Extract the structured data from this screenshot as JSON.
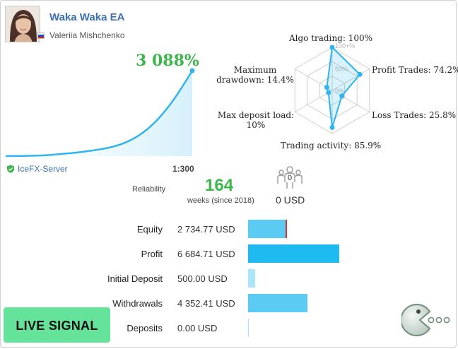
{
  "signal": {
    "title": "Waka Waka EA",
    "author": "Valeriia Mishchenko",
    "country_flag": "russia-flag-icon",
    "growth": "3 088%",
    "server": "IceFX-Server",
    "leverage": "1:300",
    "reliability_label": "Reliability",
    "weeks_value": "164",
    "weeks_label": "weeks (since 2018)",
    "subscribers_count": "0",
    "subscribers_usd": "0 USD",
    "live_label": "LIVE SIGNAL"
  },
  "growth_chart": {
    "type": "area",
    "values": [
      0,
      2,
      5,
      8,
      11,
      14,
      18,
      24,
      32,
      45,
      62,
      80,
      96,
      110,
      128,
      150,
      175,
      200,
      225,
      255,
      290,
      330,
      380,
      440,
      510,
      600,
      700,
      820,
      960,
      1120,
      1300,
      1500,
      1720,
      1960,
      2220,
      2500,
      2790,
      3088
    ]
  },
  "chart_data": {
    "type": "radar",
    "axes": [
      {
        "label": "Algo trading: 100%",
        "value": 100
      },
      {
        "label": "Profit Trades: 74.2%",
        "value": 74.2
      },
      {
        "label": "Loss Trades: 25.8%",
        "value": 25.8
      },
      {
        "label": "Trading activity: 85.9%",
        "value": 85.9
      },
      {
        "label_lines": [
          "Max deposit load:",
          "10%"
        ],
        "value": 10
      },
      {
        "label_lines": [
          "Maximum",
          "drawdown: 14.4%"
        ],
        "value": 14.4
      }
    ],
    "ring_labels": [
      "100+%",
      "50%",
      "0%"
    ],
    "color": "#2fb5ec"
  },
  "stats": [
    {
      "label": "Equity",
      "value": "2 734.77 USD",
      "amount": 2734.77,
      "color": "#5ccbf4",
      "marker": true
    },
    {
      "label": "Profit",
      "value": "6 684.71 USD",
      "amount": 6684.71,
      "color": "#1fbbf0",
      "marker": false
    },
    {
      "label": "Initial Deposit",
      "value": "500.00 USD",
      "amount": 500.0,
      "color": "#a9e5fb",
      "marker": false
    },
    {
      "label": "Withdrawals",
      "value": "4 352.41 USD",
      "amount": 4352.41,
      "color": "#5ccbf4",
      "marker": false
    },
    {
      "label": "Deposits",
      "value": "0.00 USD",
      "amount": 0.0,
      "color": "#a9e5fb",
      "marker": false
    }
  ]
}
